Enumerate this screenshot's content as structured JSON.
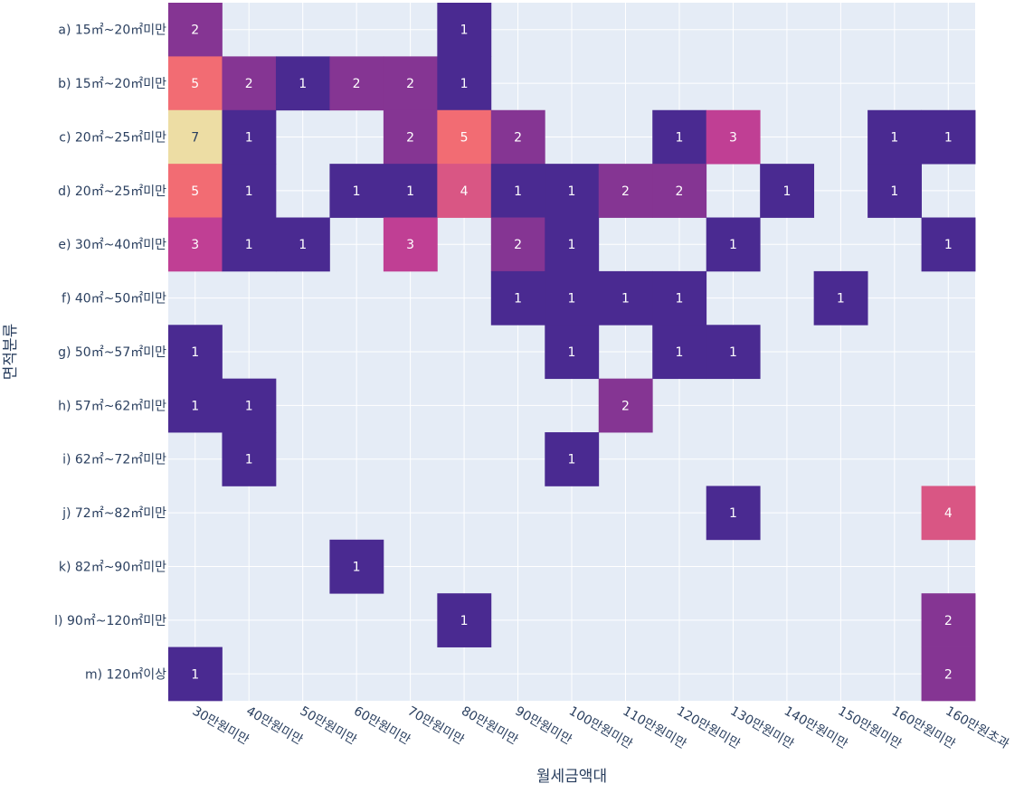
{
  "chart_data": {
    "type": "heatmap",
    "xlabel": "월세금액대",
    "ylabel": "면적분류",
    "x_categories": [
      "30만원미만",
      "40만원미만",
      "50만원미만",
      "60만원미만",
      "70만원미만",
      "80만원미만",
      "90만원미만",
      "100만원미만",
      "110만원미만",
      "120만원미만",
      "130만원미만",
      "140만원미만",
      "150만원미만",
      "160만원미만",
      "160만원초과"
    ],
    "y_categories": [
      "a) 15㎡~20㎡미만",
      "b) 15㎡~20㎡미만",
      "c) 20㎡~25㎡미만",
      "d) 20㎡~25㎡미만",
      "e) 30㎡~40㎡미만",
      "f) 40㎡~50㎡미만",
      "g) 50㎡~57㎡미만",
      "h) 57㎡~62㎡미만",
      "i) 62㎡~72㎡미만",
      "j) 72㎡~82㎡미만",
      "k) 82㎡~90㎡미만",
      "l) 90㎡~120㎡미만",
      "m) 120㎡이상"
    ],
    "z": [
      [
        2,
        null,
        null,
        null,
        null,
        1,
        null,
        null,
        null,
        null,
        null,
        null,
        null,
        null,
        null
      ],
      [
        5,
        2,
        1,
        2,
        2,
        1,
        null,
        null,
        null,
        null,
        null,
        null,
        null,
        null,
        null
      ],
      [
        7,
        1,
        null,
        null,
        2,
        5,
        2,
        null,
        null,
        1,
        3,
        null,
        null,
        1,
        1
      ],
      [
        5,
        1,
        null,
        1,
        1,
        4,
        1,
        1,
        2,
        2,
        null,
        1,
        null,
        1,
        null
      ],
      [
        3,
        1,
        1,
        null,
        3,
        null,
        2,
        1,
        null,
        null,
        1,
        null,
        null,
        null,
        1
      ],
      [
        null,
        null,
        null,
        null,
        null,
        null,
        1,
        1,
        1,
        1,
        null,
        null,
        1,
        null,
        null
      ],
      [
        1,
        null,
        null,
        null,
        null,
        null,
        null,
        1,
        null,
        1,
        1,
        null,
        null,
        null,
        null
      ],
      [
        1,
        1,
        null,
        null,
        null,
        null,
        null,
        null,
        2,
        null,
        null,
        null,
        null,
        null,
        null
      ],
      [
        null,
        1,
        null,
        null,
        null,
        null,
        null,
        1,
        null,
        null,
        null,
        null,
        null,
        null,
        null
      ],
      [
        null,
        null,
        null,
        null,
        null,
        null,
        null,
        null,
        null,
        null,
        1,
        null,
        null,
        null,
        4
      ],
      [
        null,
        null,
        null,
        1,
        null,
        null,
        null,
        null,
        null,
        null,
        null,
        null,
        null,
        null,
        null
      ],
      [
        null,
        null,
        null,
        null,
        null,
        1,
        null,
        null,
        null,
        null,
        null,
        null,
        null,
        null,
        2
      ],
      [
        1,
        null,
        null,
        null,
        null,
        null,
        null,
        null,
        null,
        null,
        null,
        null,
        null,
        null,
        2
      ]
    ],
    "zrange": [
      1,
      7
    ],
    "colorscale": [
      "#4a2a91",
      "#c03f94",
      "#f26c73",
      "#eddda4"
    ],
    "grid": true,
    "plot_background": "#e5ecf6"
  }
}
